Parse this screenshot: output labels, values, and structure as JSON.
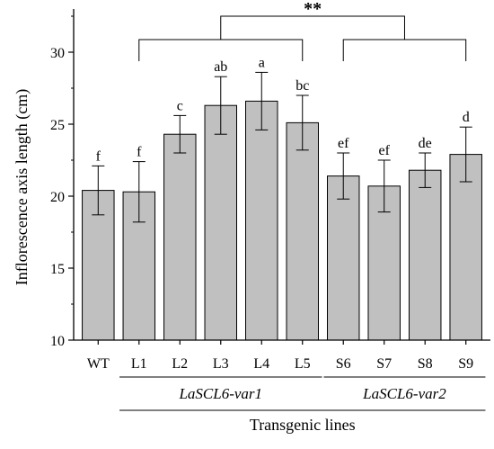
{
  "chart_data": {
    "type": "bar",
    "categories": [
      "WT",
      "L1",
      "L2",
      "L3",
      "L4",
      "L5",
      "S6",
      "S7",
      "S8",
      "S9"
    ],
    "values": [
      20.4,
      20.3,
      24.3,
      26.3,
      26.6,
      25.1,
      21.4,
      20.7,
      21.8,
      22.9
    ],
    "errors": [
      1.7,
      2.1,
      1.3,
      2.0,
      2.0,
      1.9,
      1.6,
      1.8,
      1.2,
      1.9
    ],
    "significance_letters": [
      "f",
      "f",
      "c",
      "ab",
      "a",
      "bc",
      "ef",
      "ef",
      "de",
      "d"
    ],
    "ylabel": "Inflorescence axis length (cm)",
    "xlabel": "Transgenic lines",
    "ylim": [
      10,
      33
    ],
    "yticks": [
      10,
      15,
      20,
      25,
      30
    ],
    "bar_color": "#c0c0c0",
    "groups": [
      {
        "label": "LaSCL6-var1",
        "from": 1,
        "to": 5
      },
      {
        "label": "LaSCL6-var2",
        "from": 6,
        "to": 9
      }
    ],
    "comparison_label": "**",
    "grid": false,
    "legend": "none"
  }
}
